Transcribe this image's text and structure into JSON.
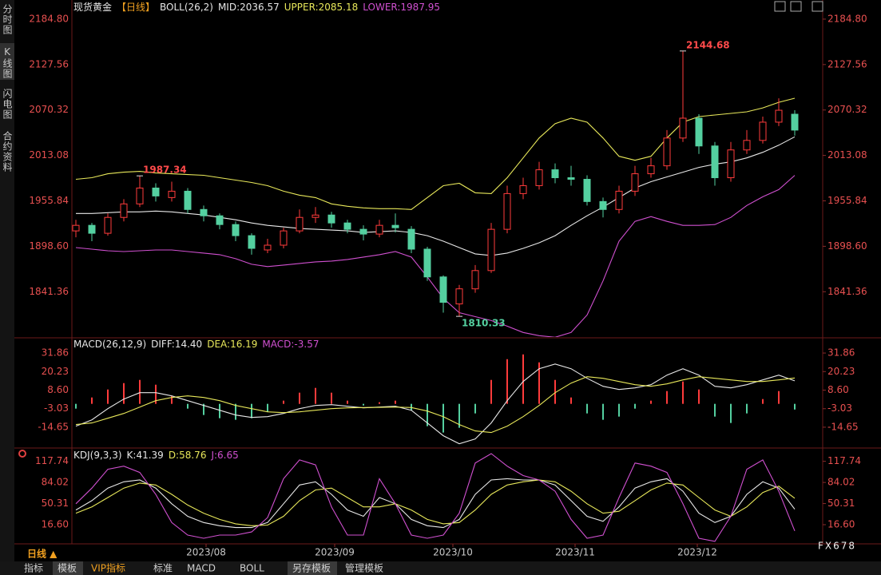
{
  "chart_data": [
    {
      "type": "candlestick",
      "header": [
        {
          "text": "现货黄金",
          "color": "#e6e6e6"
        },
        {
          "text": "【日线】",
          "color": "#f0a020"
        },
        {
          "text": "BOLL(26,2)",
          "color": "#e6e6e6"
        },
        {
          "text": "MID:2036.57",
          "color": "#e6e6e6"
        },
        {
          "text": "UPPER:2085.18",
          "color": "#e8e85a"
        },
        {
          "text": "LOWER:1987.95",
          "color": "#d050d0"
        }
      ],
      "xlim": [
        -0.25,
        46.75
      ],
      "ylim": [
        1784.3,
        2192.8
      ],
      "yticks": [
        {
          "value": 1841.36,
          "label": "1841.36"
        },
        {
          "value": 1898.6,
          "label": "1898.60"
        },
        {
          "value": 1955.84,
          "label": "1955.84"
        },
        {
          "value": 2013.08,
          "label": "2013.08"
        },
        {
          "value": 2070.32,
          "label": "2070.32"
        },
        {
          "value": 2127.56,
          "label": "2127.56"
        },
        {
          "value": 2184.8,
          "label": "2184.80"
        }
      ],
      "up_color": "#ff3b3b",
      "down_color": "#54d0a0",
      "open": [
        1918,
        1925,
        1915,
        1935,
        1952,
        1972,
        1960,
        1968,
        1945,
        1937,
        1926,
        1912,
        1894,
        1900,
        1918,
        1935,
        1938,
        1928,
        1920,
        1914,
        1925,
        1920,
        1895,
        1860,
        1826,
        1845,
        1868,
        1920,
        1965,
        1975,
        1995,
        1985,
        1983,
        1955,
        1945,
        1968,
        1990,
        2000,
        2035,
        2060,
        2025,
        1985,
        2020,
        2032,
        2055,
        2065
      ],
      "high": [
        1932,
        1928,
        1940,
        1958,
        1987.34,
        1978,
        1980,
        1972,
        1950,
        1940,
        1930,
        1915,
        1908,
        1922,
        1945,
        1948,
        1942,
        1932,
        1925,
        1932,
        1940,
        1924,
        1898,
        1862,
        1850,
        1875,
        1928,
        1975,
        1985,
        2005,
        2003,
        2000,
        1988,
        1960,
        1975,
        2000,
        2010,
        2045,
        2144.68,
        2065,
        2030,
        2030,
        2045,
        2062,
        2085,
        2070
      ],
      "low": [
        1910,
        1905,
        1912,
        1930,
        1948,
        1955,
        1955,
        1940,
        1930,
        1920,
        1905,
        1888,
        1890,
        1896,
        1915,
        1928,
        1922,
        1915,
        1906,
        1910,
        1916,
        1890,
        1855,
        1815,
        1810.33,
        1840,
        1865,
        1915,
        1958,
        1970,
        1978,
        1975,
        1950,
        1935,
        1940,
        1962,
        1985,
        1995,
        2030,
        2015,
        1975,
        1980,
        2015,
        2028,
        2050,
        2038
      ],
      "close": [
        1925,
        1915,
        1935,
        1952,
        1972,
        1962,
        1968,
        1945,
        1937,
        1926,
        1912,
        1896,
        1900,
        1918,
        1935,
        1938,
        1928,
        1920,
        1914,
        1925,
        1922,
        1895,
        1860,
        1828,
        1845,
        1868,
        1920,
        1965,
        1975,
        1995,
        1985,
        1983,
        1955,
        1945,
        1968,
        1990,
        2000,
        2035,
        2060,
        2025,
        1985,
        2020,
        2032,
        2055,
        2070,
        2045
      ],
      "labeled_highs": [
        4,
        38
      ],
      "labeled_lows": [
        24
      ],
      "series": [
        {
          "name": "MID",
          "color": "#e8e8e8",
          "values": [
            1940,
            1940,
            1941,
            1942,
            1942,
            1943,
            1942,
            1940,
            1938,
            1935,
            1932,
            1928,
            1925,
            1923,
            1921,
            1920,
            1919,
            1918,
            1916,
            1917,
            1918,
            1916,
            1912,
            1905,
            1897,
            1889,
            1887,
            1890,
            1896,
            1903,
            1912,
            1925,
            1937,
            1948,
            1960,
            1972,
            1980,
            1986,
            1992,
            1998,
            2002,
            2005,
            2010,
            2017,
            2026,
            2036.57
          ]
        },
        {
          "name": "UPPER",
          "color": "#e8e85a",
          "values": [
            1983,
            1985,
            1990,
            1992,
            1993,
            1991,
            1990,
            1989,
            1988,
            1985,
            1982,
            1979,
            1975,
            1968,
            1963,
            1960,
            1952,
            1949,
            1947,
            1946,
            1946,
            1945,
            1960,
            1975,
            1978,
            1966,
            1965,
            1985,
            2010,
            2035,
            2053,
            2060,
            2055,
            2035,
            2012,
            2007,
            2012,
            2035,
            2055,
            2062,
            2064,
            2066,
            2068,
            2073,
            2080,
            2085.18
          ]
        },
        {
          "name": "LOWER",
          "color": "#d050d0",
          "values": [
            1897,
            1895,
            1893,
            1892,
            1893,
            1894,
            1894,
            1892,
            1890,
            1888,
            1883,
            1876,
            1873,
            1875,
            1877,
            1879,
            1880,
            1882,
            1885,
            1888,
            1892,
            1885,
            1860,
            1833,
            1815,
            1810,
            1805,
            1798,
            1790,
            1786,
            1784,
            1790,
            1812,
            1855,
            1905,
            1930,
            1936,
            1930,
            1925,
            1925,
            1926,
            1935,
            1950,
            1961,
            1970,
            1987.95
          ]
        }
      ]
    },
    {
      "type": "macd",
      "header": [
        {
          "text": "MACD(26,12,9)",
          "color": "#e6e6e6"
        },
        {
          "text": "DIFF:14.40",
          "color": "#e6e6e6"
        },
        {
          "text": "DEA:16.19",
          "color": "#e8e85a"
        },
        {
          "text": "MACD:-3.57",
          "color": "#d050d0"
        }
      ],
      "xlim": [
        -0.25,
        46.75
      ],
      "ylim": [
        -27.2,
        40.4
      ],
      "yticks": [
        -14.65,
        -3.03,
        {
          "value": 8.6,
          "label": "8.60"
        },
        20.23,
        31.86
      ],
      "up_color": "#ff3b3b",
      "down_color": "#54d0a0",
      "histogram": [
        -3,
        4,
        9,
        13,
        15,
        12,
        5,
        -3,
        -7,
        -9,
        -10,
        -9,
        -5,
        2,
        7,
        10,
        7,
        2,
        -1,
        1,
        2,
        -4,
        -14,
        -18,
        -15,
        -6,
        15,
        28,
        31,
        26,
        15,
        4,
        -6,
        -10,
        -8,
        -3,
        2,
        8,
        14,
        9,
        -8,
        -12,
        -6,
        3,
        8,
        -3.57
      ],
      "series": [
        {
          "name": "DIFF",
          "color": "#e8e8e8",
          "values": [
            -14,
            -10,
            -3,
            3,
            7,
            7,
            5,
            2,
            -1,
            -4,
            -7,
            -8.5,
            -8,
            -6,
            -3,
            -1,
            -0.5,
            -1.5,
            -2.5,
            -2,
            -1.5,
            -4,
            -12,
            -20,
            -25,
            -22,
            -12,
            2,
            14,
            22,
            25,
            22,
            16,
            11,
            9,
            10,
            12,
            18,
            22,
            18,
            11,
            10,
            12,
            15,
            18,
            14.4
          ]
        },
        {
          "name": "DEA",
          "color": "#e8e85a",
          "values": [
            -13,
            -12,
            -9,
            -6,
            -2,
            2,
            4,
            5,
            4,
            2,
            -1,
            -3,
            -5,
            -5.5,
            -5,
            -4,
            -3,
            -2.5,
            -2.3,
            -2.2,
            -2,
            -2.3,
            -4.5,
            -8,
            -13,
            -17,
            -18,
            -14,
            -8,
            -1,
            7,
            13,
            17,
            16,
            14,
            12,
            11,
            12.5,
            15,
            17,
            16,
            15,
            14,
            14,
            15,
            16.19
          ]
        }
      ]
    },
    {
      "type": "line",
      "header": [
        {
          "text": "KDJ(9,3,3)",
          "color": "#e6e6e6"
        },
        {
          "text": "K:41.39",
          "color": "#e6e6e6"
        },
        {
          "text": "D:58.76",
          "color": "#e8e85a"
        },
        {
          "text": "J:6.65",
          "color": "#d050d0"
        }
      ],
      "xlim": [
        -0.25,
        46.75
      ],
      "ylim": [
        -12.7,
        136.4
      ],
      "yticks": [
        {
          "value": 16.6,
          "label": "16.60"
        },
        50.31,
        84.02,
        117.74
      ],
      "xticks": [
        {
          "value": 8.15,
          "label": "2023/08"
        },
        {
          "value": 16.2,
          "label": "2023/09"
        },
        {
          "value": 23.6,
          "label": "2023/10"
        },
        {
          "value": 31.25,
          "label": "2023/11"
        },
        {
          "value": 38.9,
          "label": "2023/12"
        }
      ],
      "series": [
        {
          "name": "K",
          "color": "#e8e8e8",
          "values": [
            40,
            55,
            75,
            85,
            88,
            75,
            50,
            30,
            20,
            15,
            12,
            12,
            20,
            50,
            80,
            85,
            65,
            40,
            30,
            60,
            50,
            25,
            15,
            12,
            25,
            65,
            88,
            90,
            88,
            88,
            80,
            55,
            30,
            22,
            45,
            75,
            85,
            90,
            70,
            35,
            20,
            30,
            65,
            85,
            75,
            41.39
          ]
        },
        {
          "name": "D",
          "color": "#e8e85a",
          "values": [
            35,
            45,
            60,
            75,
            83,
            80,
            65,
            48,
            35,
            25,
            18,
            15,
            16,
            30,
            55,
            72,
            75,
            60,
            45,
            45,
            50,
            40,
            25,
            18,
            20,
            40,
            65,
            80,
            85,
            88,
            85,
            70,
            50,
            35,
            38,
            55,
            72,
            83,
            80,
            60,
            40,
            30,
            45,
            68,
            78,
            58.76
          ]
        },
        {
          "name": "J",
          "color": "#d050d0",
          "values": [
            50,
            75,
            105,
            110,
            100,
            65,
            20,
            0,
            -5,
            0,
            0,
            5,
            28,
            90,
            120,
            112,
            45,
            0,
            0,
            90,
            50,
            0,
            -5,
            0,
            35,
            115,
            130,
            110,
            95,
            88,
            70,
            25,
            -5,
            0,
            60,
            115,
            110,
            100,
            50,
            -5,
            -10,
            30,
            105,
            120,
            70,
            6.65
          ]
        }
      ]
    }
  ],
  "sidebar": [
    "分时图",
    "K线图",
    "闪电图",
    "合约资料"
  ],
  "period": "日线 ▲",
  "toolbar": [
    {
      "text": "指标"
    },
    {
      "text": "模板",
      "highlight": true
    },
    {
      "text": "VIP指标",
      "color": "#f0a020"
    },
    {
      "text": "标准"
    },
    {
      "text": "MACD"
    },
    {
      "text": "BOLL"
    },
    {
      "text": "另存模板",
      "highlight": true
    },
    {
      "text": "管理模板"
    }
  ],
  "watermark": "FX678"
}
